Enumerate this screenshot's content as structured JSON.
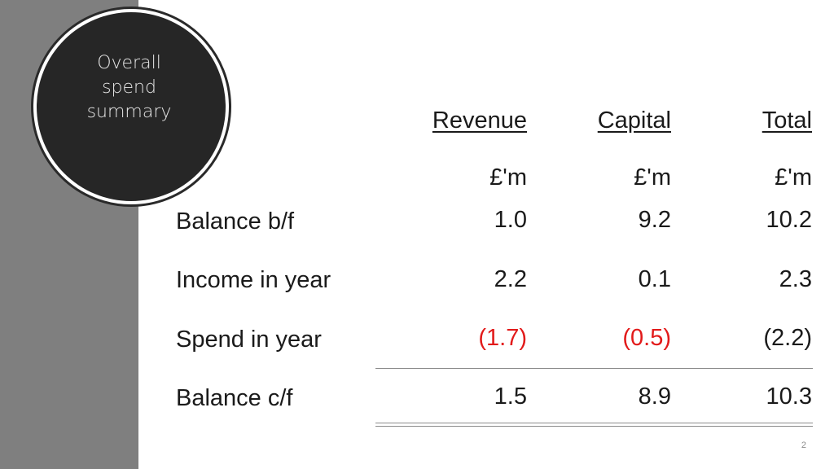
{
  "slide": {
    "title_lines": [
      "Overall",
      "spend",
      "summary"
    ],
    "page_number": "2",
    "colors": {
      "side_band": "#7f7f7f",
      "badge": "#262626",
      "negative": "#e21a1a"
    }
  },
  "table": {
    "headers": [
      "Revenue",
      "Capital",
      "Total"
    ],
    "units": [
      "£'m",
      "£'m",
      "£'m"
    ],
    "rows": [
      {
        "label": "Balance b/f",
        "values": [
          "1.0",
          "9.2",
          "10.2"
        ]
      },
      {
        "label": "Income in year",
        "values": [
          "2.2",
          "0.1",
          "2.3"
        ]
      },
      {
        "label": "Spend in year",
        "values": [
          "(1.7)",
          "(0.5)",
          "(2.2)"
        ]
      },
      {
        "label": "Balance c/f",
        "values": [
          "1.5",
          "8.9",
          "10.3"
        ]
      }
    ]
  }
}
